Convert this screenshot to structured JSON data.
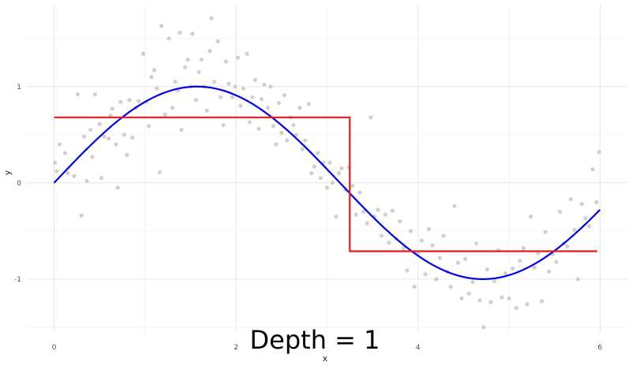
{
  "chart_data": {
    "type": "scatter",
    "xlabel": "x",
    "ylabel": "y",
    "annotation": "Depth = 1",
    "xlim": [
      -0.3,
      6.3
    ],
    "ylim": [
      -1.55,
      1.85
    ],
    "x_ticks": [
      0,
      2,
      4,
      6
    ],
    "x_tick_labels": [
      "0",
      "2",
      "4",
      "6"
    ],
    "y_ticks": [
      -1,
      0,
      1
    ],
    "y_tick_labels": [
      "-1",
      "0",
      "1"
    ],
    "grid": true,
    "colors": {
      "points": "#c8c8c8",
      "true_function": "#0000ee",
      "step_fit": "#e31a1c",
      "grid_major": "#e6e6e6",
      "grid_minor": "#f2f2f2"
    },
    "series": [
      {
        "kind": "points",
        "points": [
          [
            0.01,
            0.21
          ],
          [
            0.03,
            0.12
          ],
          [
            0.06,
            0.4
          ],
          [
            0.12,
            0.31
          ],
          [
            0.15,
            0.1
          ],
          [
            0.22,
            0.07
          ],
          [
            0.26,
            0.92
          ],
          [
            0.3,
            -0.34
          ],
          [
            0.33,
            0.48
          ],
          [
            0.36,
            0.02
          ],
          [
            0.4,
            0.55
          ],
          [
            0.42,
            0.27
          ],
          [
            0.45,
            0.92
          ],
          [
            0.5,
            0.61
          ],
          [
            0.52,
            0.05
          ],
          [
            0.55,
            0.48
          ],
          [
            0.6,
            0.46
          ],
          [
            0.62,
            0.7
          ],
          [
            0.64,
            0.77
          ],
          [
            0.68,
            0.4
          ],
          [
            0.7,
            -0.05
          ],
          [
            0.73,
            0.84
          ],
          [
            0.77,
            0.5
          ],
          [
            0.8,
            0.29
          ],
          [
            0.83,
            0.86
          ],
          [
            0.86,
            0.47
          ],
          [
            0.9,
            0.78
          ],
          [
            0.93,
            0.85
          ],
          [
            0.98,
            1.34
          ],
          [
            1.01,
            0.84
          ],
          [
            1.04,
            0.59
          ],
          [
            1.07,
            1.1
          ],
          [
            1.1,
            1.17
          ],
          [
            1.13,
            0.98
          ],
          [
            1.16,
            0.11
          ],
          [
            1.18,
            1.63
          ],
          [
            1.22,
            0.71
          ],
          [
            1.26,
            1.5
          ],
          [
            1.3,
            0.78
          ],
          [
            1.33,
            1.05
          ],
          [
            1.36,
            0.96
          ],
          [
            1.38,
            1.56
          ],
          [
            1.4,
            0.55
          ],
          [
            1.44,
            1.2
          ],
          [
            1.47,
            1.28
          ],
          [
            1.5,
            1.0
          ],
          [
            1.52,
            1.55
          ],
          [
            1.56,
            0.86
          ],
          [
            1.59,
            1.15
          ],
          [
            1.62,
            1.28
          ],
          [
            1.65,
            1.0
          ],
          [
            1.68,
            0.75
          ],
          [
            1.71,
            1.37
          ],
          [
            1.73,
            1.71
          ],
          [
            1.76,
            1.05
          ],
          [
            1.8,
            1.47
          ],
          [
            1.83,
            0.89
          ],
          [
            1.86,
            0.6
          ],
          [
            1.89,
            1.26
          ],
          [
            1.92,
            1.03
          ],
          [
            1.96,
            0.89
          ],
          [
            1.99,
            1.0
          ],
          [
            2.02,
            1.3
          ],
          [
            2.05,
            0.8
          ],
          [
            2.08,
            0.98
          ],
          [
            2.12,
            1.34
          ],
          [
            2.15,
            0.63
          ],
          [
            2.18,
            0.89
          ],
          [
            2.21,
            1.07
          ],
          [
            2.25,
            0.56
          ],
          [
            2.28,
            0.87
          ],
          [
            2.31,
            1.02
          ],
          [
            2.35,
            0.78
          ],
          [
            2.38,
            1.0
          ],
          [
            2.41,
            0.59
          ],
          [
            2.44,
            0.4
          ],
          [
            2.47,
            0.83
          ],
          [
            2.5,
            0.52
          ],
          [
            2.53,
            0.91
          ],
          [
            2.56,
            0.44
          ],
          [
            2.6,
            0.68
          ],
          [
            2.63,
            0.6
          ],
          [
            2.66,
            0.5
          ],
          [
            2.7,
            0.78
          ],
          [
            2.73,
            0.35
          ],
          [
            2.76,
            0.44
          ],
          [
            2.8,
            0.82
          ],
          [
            2.83,
            0.1
          ],
          [
            2.86,
            0.17
          ],
          [
            2.9,
            0.31
          ],
          [
            2.93,
            0.05
          ],
          [
            2.96,
            0.21
          ],
          [
            3.0,
            -0.05
          ],
          [
            3.03,
            0.21
          ],
          [
            3.06,
            0.0
          ],
          [
            3.1,
            -0.35
          ],
          [
            3.13,
            0.1
          ],
          [
            3.16,
            0.15
          ],
          [
            3.2,
            -0.07
          ],
          [
            3.24,
            0.16
          ],
          [
            3.28,
            -0.03
          ],
          [
            3.32,
            -0.33
          ],
          [
            3.36,
            -0.1
          ],
          [
            3.4,
            -0.3
          ],
          [
            3.44,
            -0.42
          ],
          [
            3.48,
            0.68
          ],
          [
            3.52,
            -0.35
          ],
          [
            3.56,
            -0.28
          ],
          [
            3.6,
            -0.55
          ],
          [
            3.64,
            -0.33
          ],
          [
            3.68,
            -0.62
          ],
          [
            3.72,
            -0.29
          ],
          [
            3.76,
            -0.58
          ],
          [
            3.8,
            -0.4
          ],
          [
            3.84,
            -0.68
          ],
          [
            3.88,
            -0.91
          ],
          [
            3.92,
            -0.5
          ],
          [
            3.96,
            -1.08
          ],
          [
            4.0,
            -0.73
          ],
          [
            4.04,
            -0.6
          ],
          [
            4.08,
            -0.95
          ],
          [
            4.12,
            -0.48
          ],
          [
            4.16,
            -0.65
          ],
          [
            4.2,
            -1.0
          ],
          [
            4.24,
            -0.78
          ],
          [
            4.28,
            -0.55
          ],
          [
            4.32,
            -0.92
          ],
          [
            4.36,
            -1.08
          ],
          [
            4.4,
            -0.24
          ],
          [
            4.44,
            -0.83
          ],
          [
            4.48,
            -1.2
          ],
          [
            4.52,
            -0.79
          ],
          [
            4.56,
            -1.15
          ],
          [
            4.6,
            -1.03
          ],
          [
            4.64,
            -0.63
          ],
          [
            4.68,
            -1.22
          ],
          [
            4.72,
            -1.5
          ],
          [
            4.76,
            -0.9
          ],
          [
            4.8,
            -1.24
          ],
          [
            4.84,
            -1.02
          ],
          [
            4.88,
            -0.7
          ],
          [
            4.92,
            -1.19
          ],
          [
            4.96,
            -0.94
          ],
          [
            5.0,
            -1.2
          ],
          [
            5.04,
            -0.89
          ],
          [
            5.08,
            -1.3
          ],
          [
            5.12,
            -0.81
          ],
          [
            5.16,
            -0.68
          ],
          [
            5.2,
            -1.26
          ],
          [
            5.24,
            -0.35
          ],
          [
            5.28,
            -0.88
          ],
          [
            5.32,
            -0.73
          ],
          [
            5.36,
            -1.23
          ],
          [
            5.4,
            -0.51
          ],
          [
            5.44,
            -0.92
          ],
          [
            5.48,
            -0.74
          ],
          [
            5.52,
            -0.82
          ],
          [
            5.56,
            -0.3
          ],
          [
            5.6,
            -0.63
          ],
          [
            5.64,
            -0.66
          ],
          [
            5.68,
            -0.17
          ],
          [
            5.72,
            -0.49
          ],
          [
            5.76,
            -1.0
          ],
          [
            5.8,
            -0.22
          ],
          [
            5.84,
            -0.37
          ],
          [
            5.88,
            -0.45
          ],
          [
            5.92,
            0.14
          ],
          [
            5.96,
            -0.2
          ],
          [
            5.99,
            0.32
          ]
        ]
      },
      {
        "kind": "curve",
        "function": "sin(x)",
        "domain": [
          0,
          6
        ]
      },
      {
        "kind": "step",
        "segments": [
          {
            "x_start": 0,
            "x_end": 3.25,
            "y": 0.68
          },
          {
            "x_start": 3.25,
            "x_end": 5.97,
            "y": -0.71
          }
        ]
      }
    ]
  }
}
